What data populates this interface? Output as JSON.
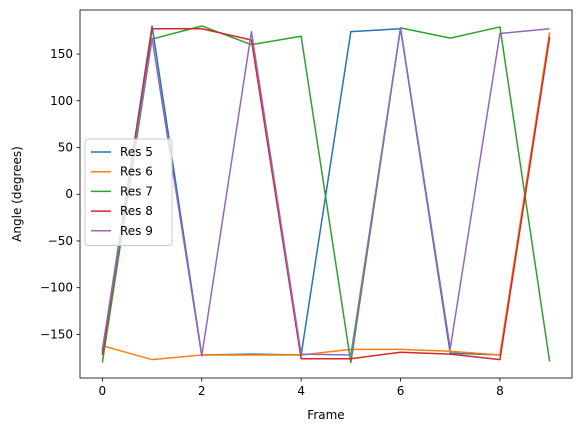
{
  "chart_data": {
    "type": "line",
    "title": "",
    "xlabel": "Frame",
    "ylabel": "Angle (degrees)",
    "xlim": [
      -0.45,
      9.45
    ],
    "ylim": [
      -196.6,
      197.1
    ],
    "xticks": [
      0,
      2,
      4,
      6,
      8
    ],
    "yticks": [
      -150,
      -100,
      -50,
      0,
      50,
      100,
      150
    ],
    "ytick_labels": [
      "−150",
      "−100",
      "−50",
      "0",
      "50",
      "100",
      "150"
    ],
    "grid": false,
    "legend_position": "center-left",
    "x": [
      0,
      1,
      2,
      3,
      4,
      5,
      6,
      7,
      8,
      9
    ],
    "series": [
      {
        "name": "Res 5",
        "color": "#1f77b4",
        "values": [
          -168,
          180,
          -172,
          -171,
          -172,
          174,
          177,
          -170,
          -172,
          173
        ]
      },
      {
        "name": "Res 6",
        "color": "#ff7f0e",
        "values": [
          -162,
          -177,
          -172,
          -172,
          -172,
          -166,
          -166,
          -168,
          -172,
          173
        ]
      },
      {
        "name": "Res 7",
        "color": "#2ca02c",
        "values": [
          -180,
          166,
          180,
          160,
          169,
          -180,
          178,
          167,
          179,
          -179
        ]
      },
      {
        "name": "Res 8",
        "color": "#d62728",
        "values": [
          -172,
          177,
          177,
          165,
          -176,
          -176,
          -169,
          -171,
          -177,
          168
        ]
      },
      {
        "name": "Res 9",
        "color": "#9467bd",
        "values": [
          -166,
          167,
          -173,
          174,
          -171,
          -172,
          178,
          -165,
          172,
          177
        ]
      }
    ]
  }
}
